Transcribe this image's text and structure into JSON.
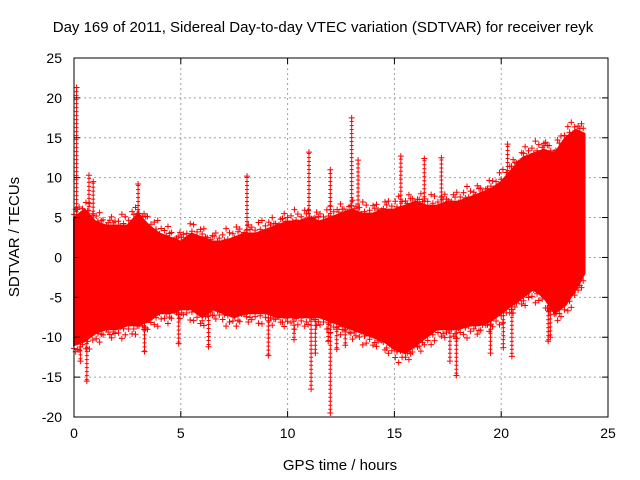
{
  "chart_data": {
    "type": "scatter",
    "title": "Day 169 of 2011, Sidereal Day-to-day VTEC variation (SDTVAR) for receiver reyk",
    "xlabel": "GPS time / hours",
    "ylabel": "SDTVAR / TECUs",
    "xlim": [
      0,
      25
    ],
    "ylim": [
      -20,
      25
    ],
    "x_ticks": [
      0,
      5,
      10,
      15,
      20,
      25
    ],
    "y_ticks": [
      -20,
      -15,
      -10,
      -5,
      0,
      5,
      10,
      15,
      20,
      25
    ],
    "x_tick_labels": [
      "0",
      "5",
      "10",
      "15",
      "20",
      "25"
    ],
    "y_tick_labels": [
      "-20",
      "-15",
      "-10",
      "-5",
      "0",
      "5",
      "10",
      "15",
      "20",
      "25"
    ],
    "grid": true,
    "marker": "plus",
    "color": "#ff0000",
    "series": [
      {
        "name": "SDTVAR",
        "envelope": {
          "x": [
            0,
            0.5,
            1,
            1.5,
            2,
            2.5,
            3,
            3.5,
            4,
            4.5,
            5,
            5.5,
            6,
            6.5,
            7,
            7.5,
            8,
            8.5,
            9,
            9.5,
            10,
            10.5,
            11,
            11.5,
            12,
            12.5,
            13,
            13.5,
            14,
            14.5,
            15,
            15.5,
            16,
            16.5,
            17,
            17.5,
            18,
            18.5,
            19,
            19.5,
            20,
            20.5,
            21,
            21.5,
            22,
            22.5,
            23,
            23.5,
            23.9
          ],
          "upper": [
            5,
            6,
            4.5,
            4,
            4,
            4,
            5.5,
            4,
            3,
            2.5,
            2,
            3,
            2.5,
            2,
            2,
            2.5,
            3,
            3,
            3.5,
            4,
            4.5,
            4.5,
            5,
            4.5,
            5,
            5.5,
            6,
            5.5,
            5.5,
            6,
            6,
            6.5,
            7,
            6.5,
            6.5,
            7,
            7,
            7.5,
            8,
            8.5,
            9.5,
            11,
            12.5,
            13,
            13.5,
            13,
            15,
            16,
            15.5
          ],
          "lower": [
            -11,
            -10.5,
            -9.5,
            -9,
            -9,
            -8.5,
            -8.5,
            -8,
            -7,
            -7,
            -6.5,
            -6.5,
            -7.5,
            -6.5,
            -7,
            -7.5,
            -7,
            -7,
            -7,
            -7.5,
            -7.5,
            -7.5,
            -7.5,
            -7.5,
            -8,
            -8.5,
            -9,
            -9.5,
            -10,
            -10.5,
            -11.5,
            -12,
            -11,
            -10,
            -9,
            -9,
            -9,
            -8.5,
            -8.5,
            -8,
            -7,
            -6,
            -5,
            -4,
            -5,
            -7,
            -6,
            -4,
            -2
          ]
        },
        "outliers": [
          {
            "x": 0.12,
            "y": 21.3
          },
          {
            "x": 0.6,
            "y": -15.5
          },
          {
            "x": 0.7,
            "y": 10.3
          },
          {
            "x": 0.3,
            "y": -13
          },
          {
            "x": 0.9,
            "y": 9.5
          },
          {
            "x": 3.0,
            "y": 9.2
          },
          {
            "x": 3.3,
            "y": -11.8
          },
          {
            "x": 4.9,
            "y": -10.8
          },
          {
            "x": 6.3,
            "y": -11.2
          },
          {
            "x": 8.1,
            "y": 10.2
          },
          {
            "x": 9.1,
            "y": -12.3
          },
          {
            "x": 10.3,
            "y": -10.3
          },
          {
            "x": 11.0,
            "y": 13.2
          },
          {
            "x": 11.1,
            "y": -16.5
          },
          {
            "x": 11.3,
            "y": -12
          },
          {
            "x": 11.9,
            "y": -10.5
          },
          {
            "x": 12.0,
            "y": -19.5
          },
          {
            "x": 12.0,
            "y": 11
          },
          {
            "x": 12.3,
            "y": -11.5
          },
          {
            "x": 12.7,
            "y": -11
          },
          {
            "x": 13.0,
            "y": 17.5
          },
          {
            "x": 13.3,
            "y": 12.2
          },
          {
            "x": 15.3,
            "y": 12.7
          },
          {
            "x": 15.7,
            "y": -11.5
          },
          {
            "x": 16.4,
            "y": 12.4
          },
          {
            "x": 17.2,
            "y": 12.5
          },
          {
            "x": 17.6,
            "y": -13
          },
          {
            "x": 17.9,
            "y": -14.8
          },
          {
            "x": 19.5,
            "y": -12
          },
          {
            "x": 20.1,
            "y": -11.3
          },
          {
            "x": 20.3,
            "y": 14.2
          },
          {
            "x": 20.5,
            "y": -12.4
          },
          {
            "x": 22.0,
            "y": 14.3
          },
          {
            "x": 22.2,
            "y": -10.5
          },
          {
            "x": 22.3,
            "y": -10
          }
        ]
      }
    ]
  }
}
